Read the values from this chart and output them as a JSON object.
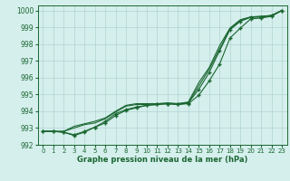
{
  "x": [
    0,
    1,
    2,
    3,
    4,
    5,
    6,
    7,
    8,
    9,
    10,
    11,
    12,
    13,
    14,
    15,
    16,
    17,
    18,
    19,
    20,
    21,
    22,
    23
  ],
  "line1": [
    992.8,
    992.8,
    992.75,
    992.6,
    992.8,
    993.05,
    993.3,
    993.75,
    994.05,
    994.2,
    994.35,
    994.4,
    994.45,
    994.4,
    994.45,
    994.95,
    995.8,
    996.8,
    998.35,
    998.95,
    999.5,
    999.55,
    999.65,
    1000.0
  ],
  "line2": [
    992.8,
    992.8,
    992.75,
    992.55,
    992.75,
    993.05,
    993.4,
    993.85,
    994.1,
    994.25,
    994.35,
    994.4,
    994.45,
    994.4,
    994.5,
    995.3,
    996.3,
    997.6,
    998.85,
    999.35,
    999.6,
    999.6,
    999.7,
    1000.0
  ],
  "line3": [
    992.8,
    992.8,
    992.8,
    993.0,
    993.2,
    993.3,
    993.55,
    993.95,
    994.3,
    994.4,
    994.4,
    994.45,
    994.45,
    994.45,
    994.5,
    995.5,
    996.5,
    997.7,
    998.9,
    999.4,
    999.6,
    999.65,
    999.7,
    1000.0
  ],
  "line4": [
    992.8,
    992.8,
    992.8,
    993.1,
    993.25,
    993.4,
    993.6,
    994.0,
    994.35,
    994.45,
    994.45,
    994.45,
    994.5,
    994.45,
    994.55,
    995.7,
    996.6,
    997.9,
    998.95,
    999.45,
    999.62,
    999.65,
    999.7,
    1000.0
  ],
  "bg_color": "#d5efed",
  "grid_color": "#b0d4d0",
  "line_color": "#1a6630",
  "marker_color": "#1a6630",
  "xlabel": "Graphe pression niveau de la mer (hPa)",
  "ylim": [
    992,
    1000.3
  ],
  "yticks": [
    992,
    993,
    994,
    995,
    996,
    997,
    998,
    999,
    1000
  ],
  "xticks": [
    0,
    1,
    2,
    3,
    4,
    5,
    6,
    7,
    8,
    9,
    10,
    11,
    12,
    13,
    14,
    15,
    16,
    17,
    18,
    19,
    20,
    21,
    22,
    23
  ],
  "xtick_labels": [
    "0",
    "1",
    "2",
    "3",
    "4",
    "5",
    "6",
    "7",
    "8",
    "9",
    "10",
    "11",
    "12",
    "13",
    "14",
    "15",
    "16",
    "17",
    "18",
    "19",
    "20",
    "21",
    "22",
    "23"
  ]
}
